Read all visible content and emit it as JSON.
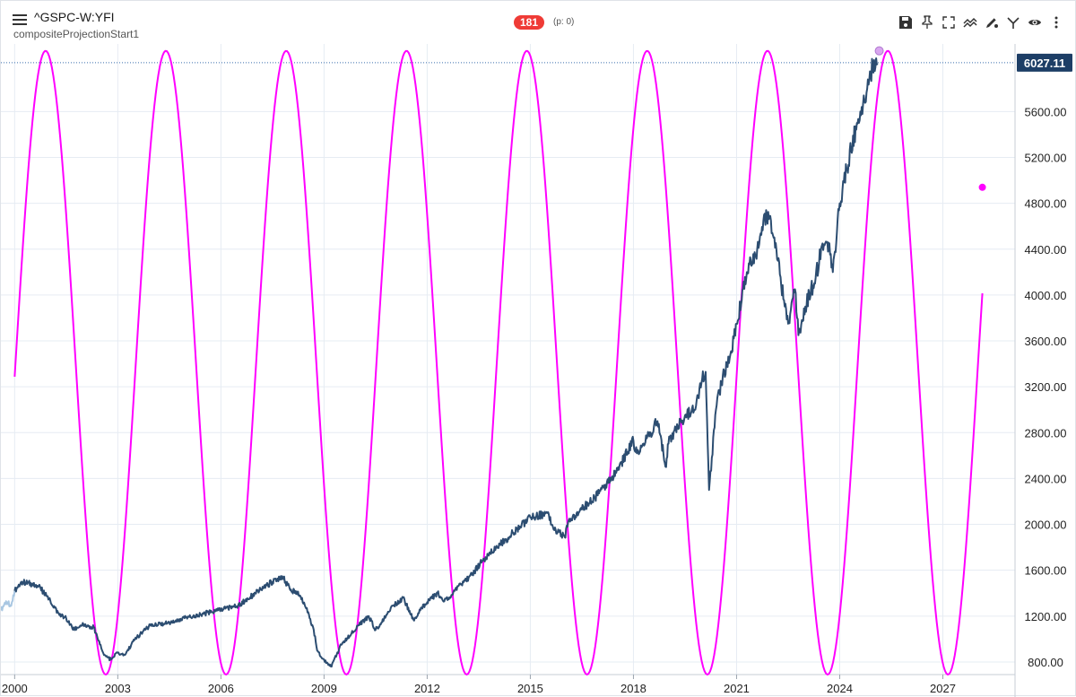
{
  "header": {
    "title": "^GSPC-W:YFI",
    "subtitle": "compositeProjectionStart1",
    "badge": "181",
    "p_count": "(p: 0)"
  },
  "toolbar": {
    "icons": [
      "save-icon",
      "pin-icon",
      "fullscreen-icon",
      "indicator-icon",
      "draw-icon",
      "compare-icon",
      "eye-icon",
      "more-icon"
    ]
  },
  "colors": {
    "price_line": "#2c4d71",
    "price_history": "#a9c7e2",
    "projection": "#ff00ff",
    "last_price_label": "#1d3e66",
    "grid": "#e6ecf3"
  },
  "chart_data": {
    "type": "line",
    "x_range": [
      1999.6,
      2029.1
    ],
    "x_ticks": [
      "2000",
      "2003",
      "2006",
      "2009",
      "2012",
      "2015",
      "2018",
      "2021",
      "2024",
      "2027"
    ],
    "y_range": [
      690,
      6190
    ],
    "y_ticks": [
      "800.00",
      "1200.00",
      "1600.00",
      "2000.00",
      "2400.00",
      "2800.00",
      "3200.00",
      "3600.00",
      "4000.00",
      "4400.00",
      "4800.00",
      "5200.00",
      "5600.00"
    ],
    "last_price_label": "6027.11",
    "last_price": 6027.11,
    "grid": true,
    "series": [
      {
        "role": "price-history",
        "x": [
          1999.6,
          1999.75,
          1999.9,
          2000.0
        ],
        "y": [
          1250,
          1330,
          1290,
          1420
        ]
      },
      {
        "role": "price",
        "x": [
          2000.0,
          2000.2,
          2000.5,
          2000.7,
          2001.0,
          2001.3,
          2001.5,
          2001.7,
          2002.0,
          2002.3,
          2002.5,
          2002.6,
          2002.8,
          2003.0,
          2003.2,
          2003.5,
          2003.8,
          2004.0,
          2004.5,
          2005.0,
          2005.5,
          2006.0,
          2006.5,
          2007.0,
          2007.5,
          2007.8,
          2008.0,
          2008.3,
          2008.5,
          2008.7,
          2008.8,
          2009.0,
          2009.2,
          2009.5,
          2009.8,
          2010.0,
          2010.3,
          2010.5,
          2010.8,
          2011.0,
          2011.3,
          2011.6,
          2011.8,
          2012.0,
          2012.3,
          2012.5,
          2012.8,
          2013.0,
          2013.3,
          2013.6,
          2014.0,
          2014.3,
          2014.6,
          2015.0,
          2015.5,
          2015.7,
          2016.0,
          2016.1,
          2016.5,
          2017.0,
          2017.5,
          2018.0,
          2018.1,
          2018.5,
          2018.7,
          2018.95,
          2019.0,
          2019.5,
          2019.8,
          2020.0,
          2020.1,
          2020.2,
          2020.4,
          2020.6,
          2020.8,
          2021.0,
          2021.3,
          2021.6,
          2021.8,
          2022.0,
          2022.2,
          2022.4,
          2022.5,
          2022.7,
          2022.8,
          2023.0,
          2023.3,
          2023.5,
          2023.7,
          2023.8,
          2024.0,
          2024.2,
          2024.5,
          2024.6,
          2024.8,
          2025.0,
          2025.1
        ],
        "y": [
          1420,
          1500,
          1480,
          1460,
          1350,
          1210,
          1180,
          1080,
          1130,
          1100,
          950,
          860,
          820,
          880,
          860,
          1000,
          1080,
          1130,
          1140,
          1190,
          1220,
          1260,
          1290,
          1400,
          1500,
          1540,
          1440,
          1380,
          1270,
          1080,
          900,
          820,
          760,
          950,
          1050,
          1120,
          1200,
          1080,
          1200,
          1290,
          1360,
          1170,
          1250,
          1320,
          1400,
          1330,
          1420,
          1480,
          1560,
          1680,
          1800,
          1870,
          1960,
          2060,
          2100,
          1950,
          1890,
          2020,
          2130,
          2270,
          2450,
          2730,
          2620,
          2800,
          2900,
          2500,
          2700,
          2950,
          3000,
          3270,
          3330,
          2300,
          3000,
          3300,
          3450,
          3750,
          4200,
          4400,
          4700,
          4650,
          4300,
          3900,
          3750,
          4050,
          3650,
          3900,
          4150,
          4450,
          4450,
          4200,
          4800,
          5100,
          5500,
          5600,
          5800,
          6050,
          6020
        ]
      }
    ],
    "projection": {
      "role": "projection",
      "form": "sine",
      "x_start": 2000.0,
      "x_end": 2028.15,
      "period_years": 3.5,
      "first_peak_x": 2000.9,
      "max": 6130,
      "min": 690,
      "start_y": 3920,
      "end_y": 4940
    },
    "markers": [
      {
        "x": 2025.15,
        "y": 6130,
        "role": "current-marker"
      },
      {
        "x": 2028.15,
        "y": 4940,
        "role": "projection-end"
      }
    ]
  }
}
